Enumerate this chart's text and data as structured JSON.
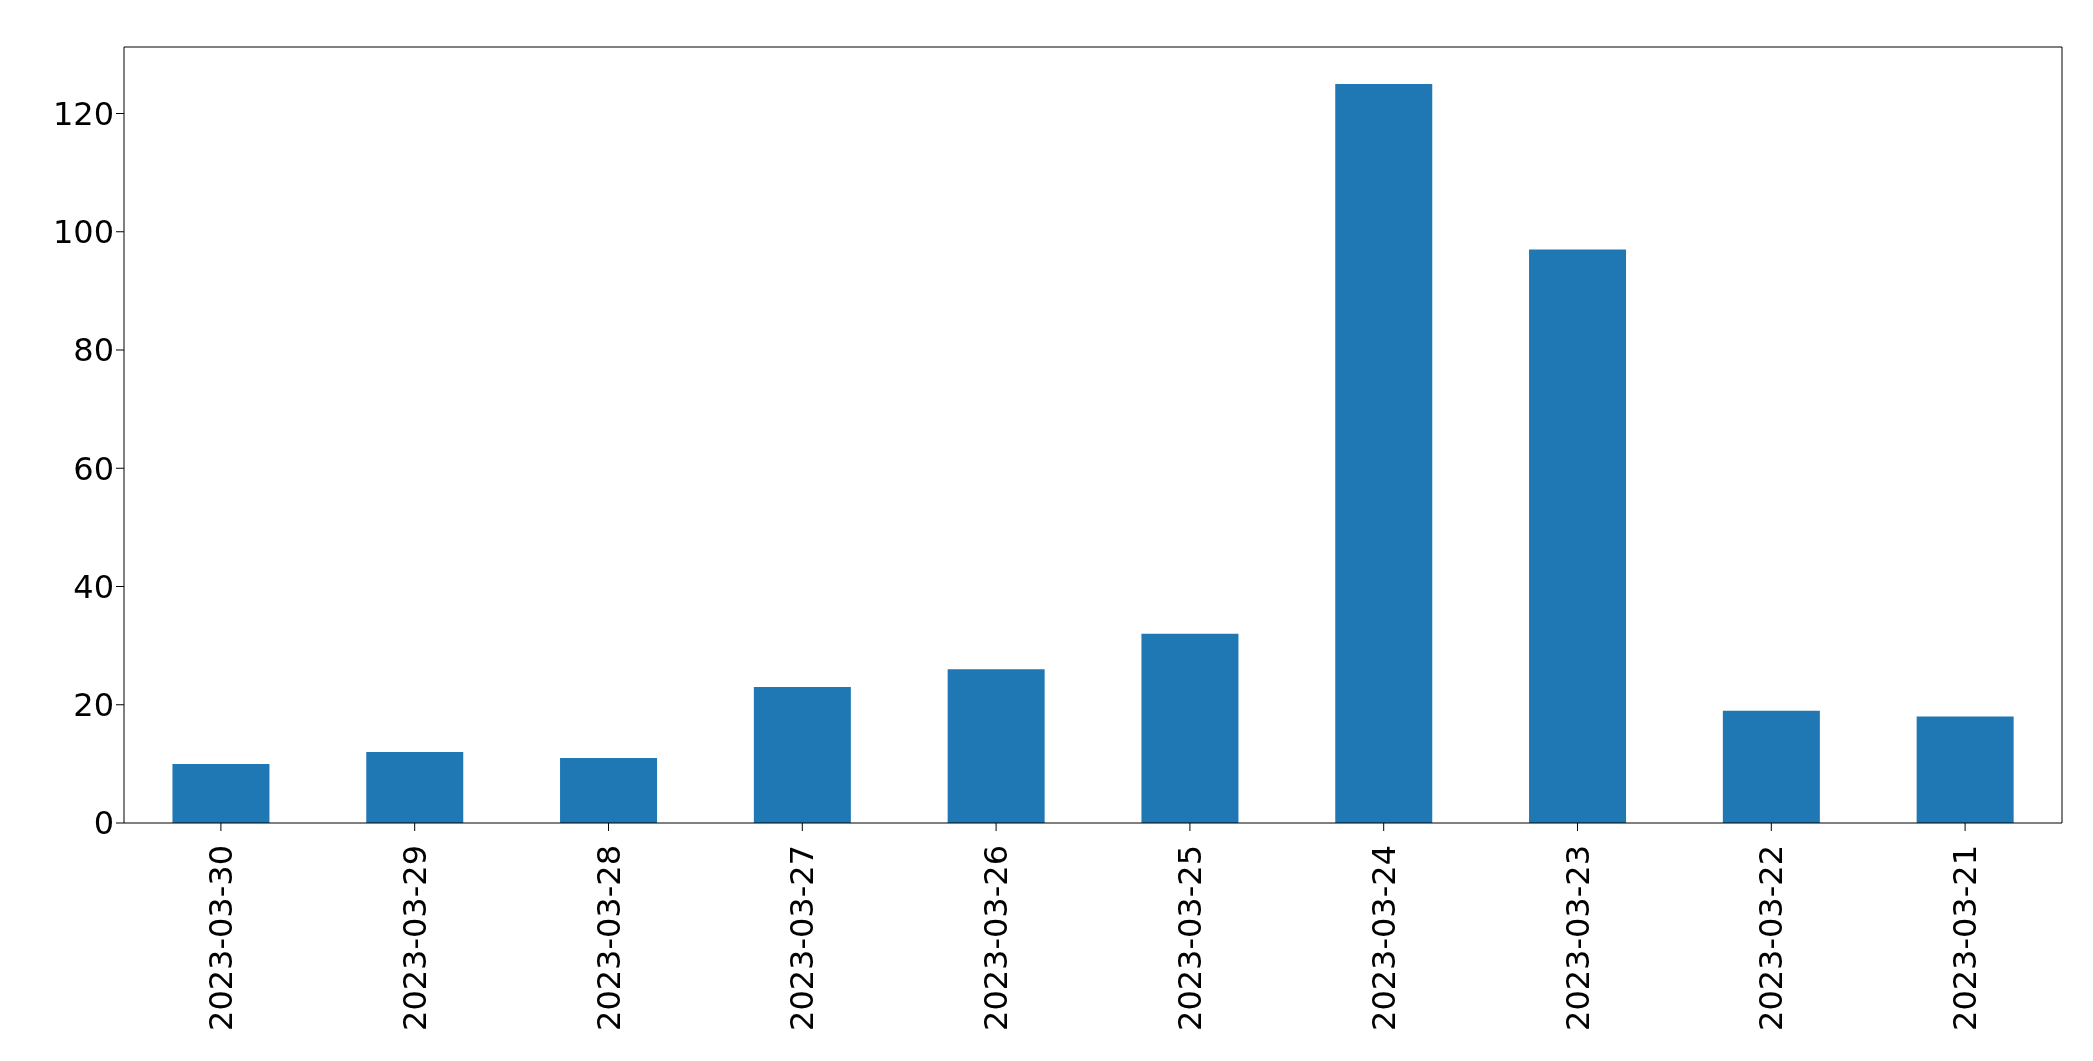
{
  "chart_data": {
    "type": "bar",
    "categories": [
      "2023-03-30",
      "2023-03-29",
      "2023-03-28",
      "2023-03-27",
      "2023-03-26",
      "2023-03-25",
      "2023-03-24",
      "2023-03-23",
      "2023-03-22",
      "2023-03-21"
    ],
    "values": [
      10,
      12,
      11,
      23,
      26,
      32,
      125,
      97,
      19,
      18
    ],
    "color": "#1f77b4",
    "ylim": [
      0,
      131.25
    ],
    "yticks": [
      0,
      20,
      40,
      60,
      80,
      100,
      120
    ],
    "grid": false,
    "legend": false
  }
}
